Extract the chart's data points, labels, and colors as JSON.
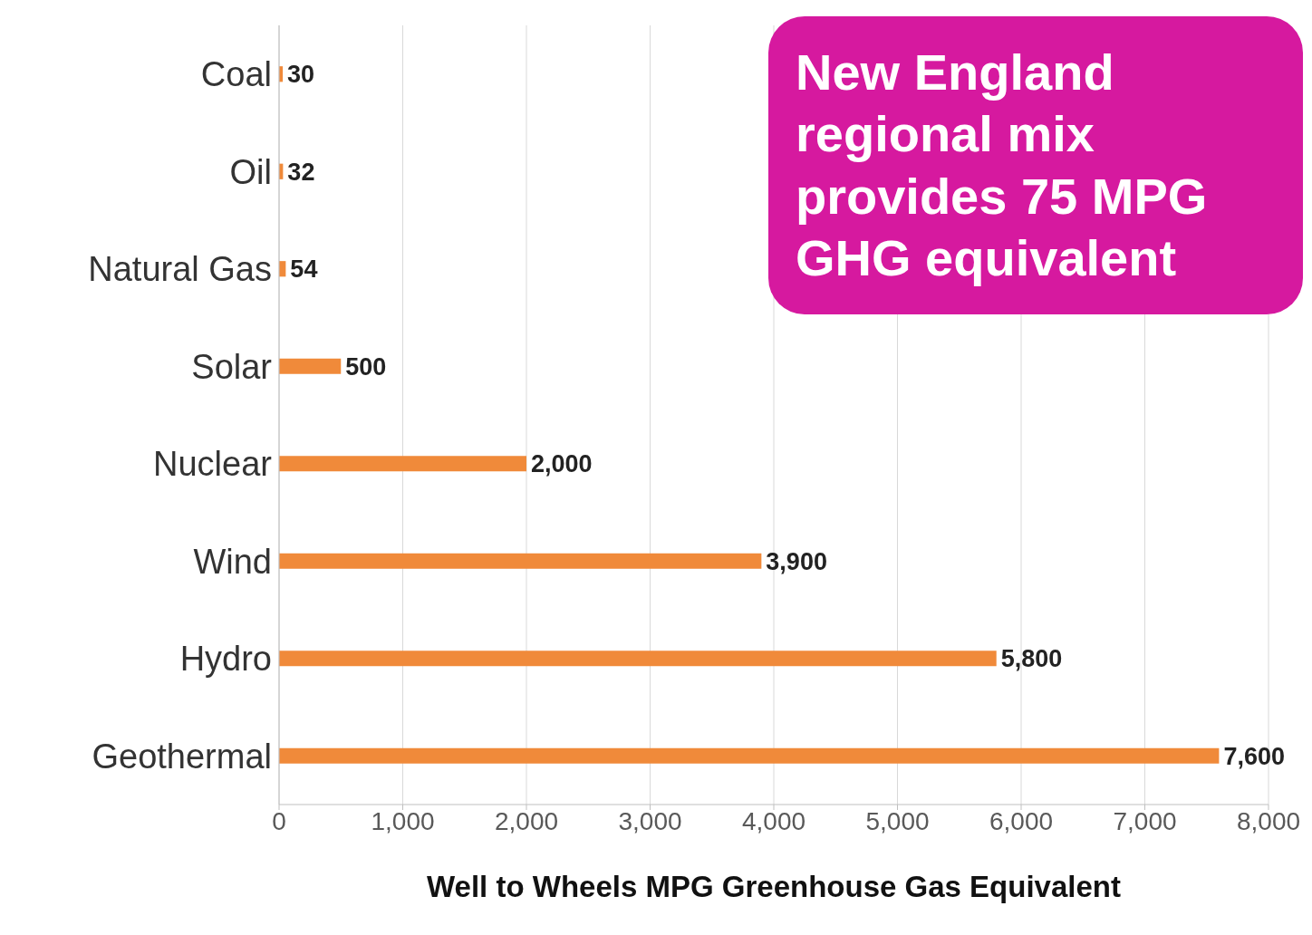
{
  "chart_data": {
    "type": "bar",
    "orientation": "horizontal",
    "xlabel": "Well to Wheels MPG Greenhouse Gas Equivalent",
    "categories": [
      "Coal",
      "Oil",
      "Natural Gas",
      "Solar",
      "Nuclear",
      "Wind",
      "Hydro",
      "Geothermal"
    ],
    "values": [
      30,
      32,
      54,
      500,
      2000,
      3900,
      5800,
      7600
    ],
    "value_labels": [
      "30",
      "32",
      "54",
      "500",
      "2,000",
      "3,900",
      "5,800",
      "7,600"
    ],
    "color": "#f08a3a",
    "xlim": [
      0,
      8000
    ],
    "xticks": [
      0,
      {
        "value": 1000,
        "label": "1,000"
      },
      {
        "value": 2000,
        "label": "2,000"
      },
      {
        "value": 3000,
        "label": "3,000"
      },
      {
        "value": 4000,
        "label": "4,000"
      },
      {
        "value": 5000,
        "label": "5,000"
      },
      {
        "value": 6000,
        "label": "6,000"
      },
      {
        "value": 7000,
        "label": "7,000"
      },
      {
        "value": 8000,
        "label": "8,000"
      }
    ],
    "grid": "x",
    "annotations": [
      "New England regional mix provides 75 MPG GHG equivalent"
    ]
  }
}
